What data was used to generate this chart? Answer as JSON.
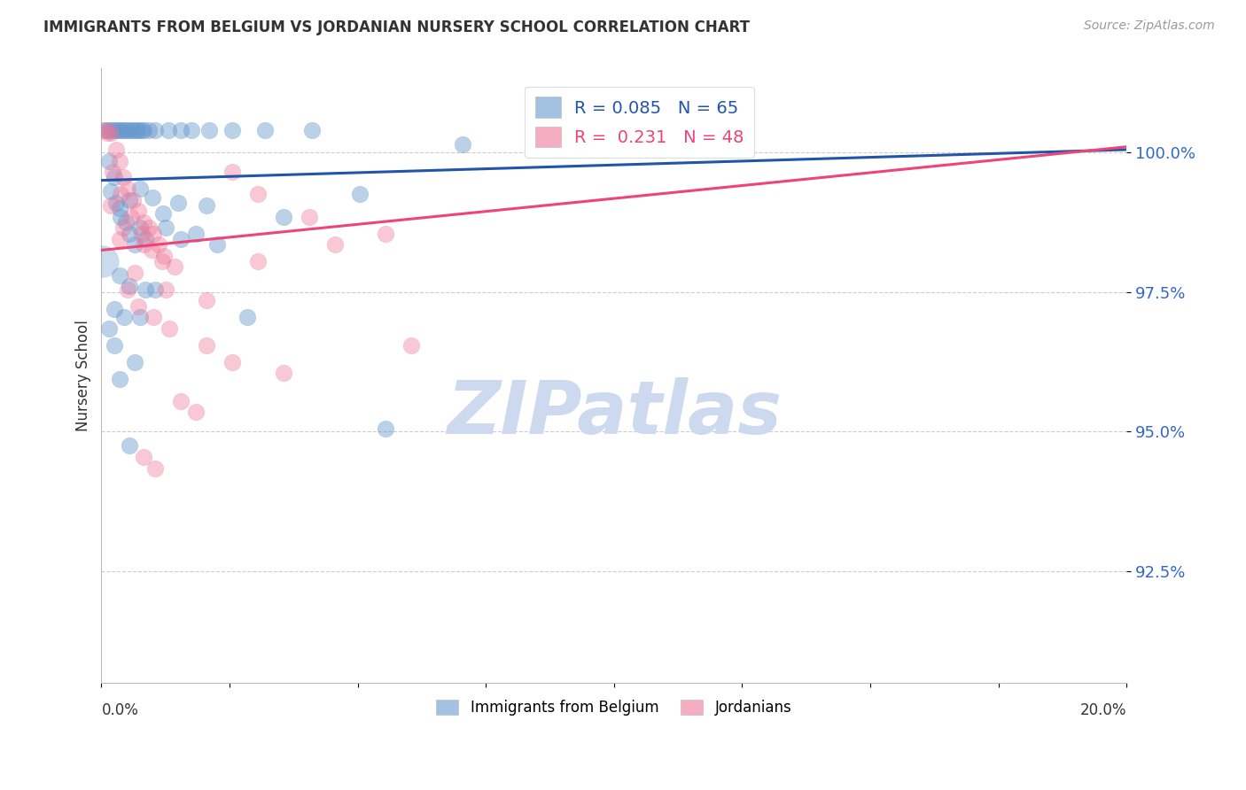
{
  "title": "IMMIGRANTS FROM BELGIUM VS JORDANIAN NURSERY SCHOOL CORRELATION CHART",
  "source": "Source: ZipAtlas.com",
  "ylabel": "Nursery School",
  "yticks": [
    92.5,
    95.0,
    97.5,
    100.0
  ],
  "ytick_labels": [
    "92.5%",
    "95.0%",
    "97.5%",
    "100.0%"
  ],
  "xlim": [
    0.0,
    20.0
  ],
  "ylim": [
    90.5,
    101.5
  ],
  "blue_R": 0.085,
  "blue_N": 65,
  "pink_R": 0.231,
  "pink_N": 48,
  "blue_color": "#6699cc",
  "pink_color": "#ee7799",
  "blue_line_color": "#2255aa",
  "pink_line_color": "#ee4477",
  "legend_label_blue": "Immigrants from Belgium",
  "legend_label_pink": "Jordanians",
  "blue_line_x0": 0.0,
  "blue_line_y0": 99.5,
  "blue_line_x1": 20.0,
  "blue_line_y1": 100.05,
  "pink_line_x0": 0.0,
  "pink_line_y0": 98.25,
  "pink_line_x1": 20.0,
  "pink_line_y1": 100.1,
  "blue_dots": [
    [
      0.08,
      100.4
    ],
    [
      0.12,
      100.4
    ],
    [
      0.18,
      100.4
    ],
    [
      0.22,
      100.4
    ],
    [
      0.28,
      100.4
    ],
    [
      0.32,
      100.4
    ],
    [
      0.38,
      100.4
    ],
    [
      0.42,
      100.4
    ],
    [
      0.48,
      100.4
    ],
    [
      0.52,
      100.4
    ],
    [
      0.58,
      100.4
    ],
    [
      0.62,
      100.4
    ],
    [
      0.68,
      100.4
    ],
    [
      0.72,
      100.4
    ],
    [
      0.78,
      100.4
    ],
    [
      0.82,
      100.4
    ],
    [
      0.92,
      100.4
    ],
    [
      1.05,
      100.4
    ],
    [
      1.3,
      100.4
    ],
    [
      1.55,
      100.4
    ],
    [
      1.75,
      100.4
    ],
    [
      2.1,
      100.4
    ],
    [
      2.55,
      100.4
    ],
    [
      3.2,
      100.4
    ],
    [
      4.1,
      100.4
    ],
    [
      0.15,
      99.85
    ],
    [
      0.25,
      99.55
    ],
    [
      0.18,
      99.3
    ],
    [
      0.28,
      99.1
    ],
    [
      0.38,
      98.85
    ],
    [
      0.48,
      98.75
    ],
    [
      0.55,
      98.55
    ],
    [
      0.65,
      98.35
    ],
    [
      0.75,
      98.65
    ],
    [
      0.85,
      98.45
    ],
    [
      1.25,
      98.65
    ],
    [
      1.55,
      98.45
    ],
    [
      1.85,
      98.55
    ],
    [
      2.25,
      98.35
    ],
    [
      0.35,
      99.0
    ],
    [
      0.55,
      99.15
    ],
    [
      0.75,
      99.35
    ],
    [
      1.0,
      99.2
    ],
    [
      1.2,
      98.9
    ],
    [
      1.5,
      99.1
    ],
    [
      0.35,
      97.8
    ],
    [
      0.55,
      97.6
    ],
    [
      0.85,
      97.55
    ],
    [
      1.05,
      97.55
    ],
    [
      0.25,
      97.2
    ],
    [
      0.45,
      97.05
    ],
    [
      0.15,
      96.85
    ],
    [
      0.25,
      96.55
    ],
    [
      0.35,
      95.95
    ],
    [
      2.05,
      99.05
    ],
    [
      3.55,
      98.85
    ],
    [
      5.05,
      99.25
    ],
    [
      7.05,
      100.15
    ],
    [
      5.55,
      95.05
    ],
    [
      0.55,
      94.75
    ],
    [
      2.85,
      97.05
    ],
    [
      0.65,
      96.25
    ],
    [
      0.75,
      97.05
    ]
  ],
  "blue_large_dot": [
    0.03,
    98.05
  ],
  "pink_dots": [
    [
      0.06,
      100.4
    ],
    [
      0.12,
      100.35
    ],
    [
      0.18,
      100.35
    ],
    [
      0.28,
      100.05
    ],
    [
      0.35,
      99.85
    ],
    [
      0.42,
      99.55
    ],
    [
      0.52,
      99.35
    ],
    [
      0.62,
      99.15
    ],
    [
      0.72,
      98.95
    ],
    [
      0.82,
      98.75
    ],
    [
      0.92,
      98.65
    ],
    [
      1.02,
      98.55
    ],
    [
      1.12,
      98.35
    ],
    [
      1.22,
      98.15
    ],
    [
      1.42,
      97.95
    ],
    [
      0.22,
      99.65
    ],
    [
      0.38,
      99.25
    ],
    [
      0.58,
      98.85
    ],
    [
      0.78,
      98.55
    ],
    [
      0.98,
      98.25
    ],
    [
      1.18,
      98.05
    ],
    [
      2.55,
      99.65
    ],
    [
      3.05,
      99.25
    ],
    [
      4.05,
      98.85
    ],
    [
      5.55,
      98.55
    ],
    [
      0.52,
      97.55
    ],
    [
      0.72,
      97.25
    ],
    [
      1.02,
      97.05
    ],
    [
      1.32,
      96.85
    ],
    [
      2.05,
      96.55
    ],
    [
      2.55,
      96.25
    ],
    [
      3.55,
      96.05
    ],
    [
      1.55,
      95.55
    ],
    [
      1.85,
      95.35
    ],
    [
      0.82,
      94.55
    ],
    [
      1.05,
      94.35
    ],
    [
      0.35,
      98.45
    ],
    [
      0.65,
      97.85
    ],
    [
      1.25,
      97.55
    ],
    [
      2.05,
      97.35
    ],
    [
      3.05,
      98.05
    ],
    [
      4.55,
      98.35
    ],
    [
      0.18,
      99.05
    ],
    [
      0.42,
      98.65
    ],
    [
      0.82,
      98.35
    ],
    [
      6.05,
      96.55
    ],
    [
      10.05,
      100.35
    ]
  ],
  "watermark_text": "ZIPatlas",
  "watermark_color": "#ccd9ee"
}
